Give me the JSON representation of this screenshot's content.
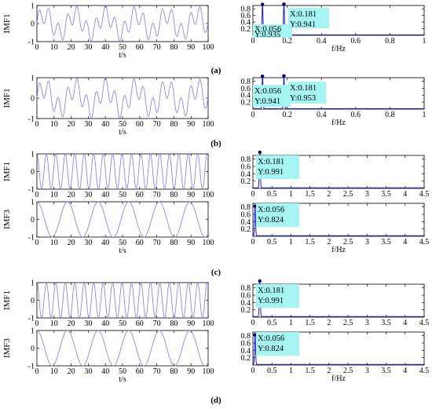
{
  "figure": {
    "panel_labels": [
      "(a)",
      "(b)",
      "(c)",
      "(d)"
    ]
  },
  "colors": {
    "signal": "#7b7bf2",
    "spectrum": "#1c1cc8",
    "marker": "#000080",
    "datatip": "#a5f5f5"
  },
  "chart_data": [
    {
      "type": "line",
      "panel": "(a)",
      "kind": "time",
      "ylabel": "IMF1",
      "xlabel": "t/s",
      "xlim": [
        0,
        100
      ],
      "ylim": [
        -1,
        1
      ],
      "xticks": [
        "0",
        "10",
        "20",
        "30",
        "40",
        "50",
        "60",
        "70",
        "80",
        "90",
        "100"
      ],
      "yticks": [
        "1",
        "0",
        "-1"
      ],
      "signal": "0.5*sin(2π·0.181·t) + 0.5*sin(2π·0.056·t)"
    },
    {
      "type": "line",
      "panel": "(a)",
      "kind": "spectrum",
      "xlabel": "f/Hz",
      "xlim": [
        0,
        1
      ],
      "ylim": [
        0,
        0.9
      ],
      "xticks": [
        "0",
        "0.2",
        "0.4",
        "0.6",
        "0.8",
        "1"
      ],
      "yticks": [
        "0.8",
        "0.6",
        "0.4",
        "0.2"
      ],
      "peaks": [
        {
          "x": 0.056,
          "y": 0.935
        },
        {
          "x": 0.181,
          "y": 0.941
        }
      ],
      "datatips": [
        {
          "x_text": "X:0.056",
          "y_text": "Y:0.935"
        },
        {
          "x_text": "X:0.181",
          "y_text": "Y:0.941"
        }
      ]
    },
    {
      "type": "line",
      "panel": "(b)",
      "kind": "time",
      "ylabel": "IMF1",
      "xlabel": "t/s",
      "xlim": [
        0,
        100
      ],
      "ylim": [
        -1,
        1
      ],
      "xticks": [
        "0",
        "10",
        "20",
        "30",
        "40",
        "50",
        "60",
        "70",
        "80",
        "90",
        "100"
      ],
      "yticks": [
        "1",
        "0",
        "-1"
      ],
      "signal": "0.5*sin(2π·0.181·t) + 0.5*sin(2π·0.056·t)"
    },
    {
      "type": "line",
      "panel": "(b)",
      "kind": "spectrum",
      "xlabel": "f/Hz",
      "xlim": [
        0,
        1
      ],
      "ylim": [
        0,
        0.9
      ],
      "xticks": [
        "0",
        "0.2",
        "0.4",
        "0.6",
        "0.8",
        "1"
      ],
      "yticks": [
        "0.8",
        "0.6",
        "0.4",
        "0.2"
      ],
      "peaks": [
        {
          "x": 0.056,
          "y": 0.941
        },
        {
          "x": 0.181,
          "y": 0.953
        }
      ],
      "datatips": [
        {
          "x_text": "X:0.056",
          "y_text": "Y:0.941"
        },
        {
          "x_text": "X:0.181",
          "y_text": "Y:0.953"
        }
      ]
    },
    {
      "type": "line",
      "panel": "(c)",
      "kind": "time",
      "ylabel": "IMF1",
      "xlabel": "",
      "xlim": [
        0,
        100
      ],
      "ylim": [
        -1,
        1
      ],
      "xticks": [
        "0",
        "10",
        "20",
        "30",
        "40",
        "50",
        "60",
        "70",
        "80",
        "90",
        "100"
      ],
      "yticks": [
        "1",
        "0",
        "-1"
      ],
      "signal": "cos(2π·0.181·t)"
    },
    {
      "type": "line",
      "panel": "(c)",
      "kind": "spectrum",
      "xlabel": "",
      "xlim": [
        0,
        4.5
      ],
      "ylim": [
        0,
        0.9
      ],
      "xticks": [
        "0",
        "0.5",
        "1",
        "1.5",
        "2",
        "2.5",
        "3",
        "3.5",
        "4",
        "4.5"
      ],
      "yticks": [
        "0.8",
        "0.6",
        "0.4",
        "0.2"
      ],
      "peaks": [
        {
          "x": 0.181,
          "y": 0.991
        }
      ],
      "datatips": [
        {
          "x_text": "X:0.181",
          "y_text": "Y:0.991"
        }
      ]
    },
    {
      "type": "line",
      "panel": "(c)",
      "kind": "time",
      "ylabel": "IMF3",
      "xlabel": "t/s",
      "xlim": [
        0,
        100
      ],
      "ylim": [
        -1,
        1
      ],
      "xticks": [
        "0",
        "10",
        "20",
        "30",
        "40",
        "50",
        "60",
        "70",
        "80",
        "90",
        "100"
      ],
      "yticks": [
        "1",
        "0",
        "-1"
      ],
      "signal": "cos(2π·0.056·t)"
    },
    {
      "type": "line",
      "panel": "(c)",
      "kind": "spectrum",
      "xlabel": "f/Hz",
      "xlim": [
        0,
        4.5
      ],
      "ylim": [
        0,
        0.9
      ],
      "xticks": [
        "0",
        "0.5",
        "1",
        "1.5",
        "2",
        "2.5",
        "3",
        "3.5",
        "4",
        "4.5"
      ],
      "yticks": [
        "0.8",
        "0.6",
        "0.4",
        "0.2"
      ],
      "peaks": [
        {
          "x": 0.056,
          "y": 0.824
        }
      ],
      "datatips": [
        {
          "x_text": "X:0.056",
          "y_text": "Y:0.824"
        }
      ]
    },
    {
      "type": "line",
      "panel": "(d)",
      "kind": "time",
      "ylabel": "IMF1",
      "xlabel": "",
      "xlim": [
        0,
        100
      ],
      "ylim": [
        -1,
        1
      ],
      "xticks": [
        "0",
        "10",
        "20",
        "30",
        "40",
        "50",
        "60",
        "70",
        "80",
        "90",
        "100"
      ],
      "yticks": [
        "1",
        "0",
        "-1"
      ],
      "signal": "cos(2π·0.181·t)"
    },
    {
      "type": "line",
      "panel": "(d)",
      "kind": "spectrum",
      "xlabel": "",
      "xlim": [
        0,
        4.5
      ],
      "ylim": [
        0,
        0.9
      ],
      "xticks": [
        "0",
        "0.5",
        "1",
        "1.5",
        "2",
        "2.5",
        "3",
        "3.5",
        "4",
        "4.5"
      ],
      "yticks": [
        "0.8",
        "0.6",
        "0.4",
        "0.2"
      ],
      "peaks": [
        {
          "x": 0.181,
          "y": 0.991
        }
      ],
      "datatips": [
        {
          "x_text": "X:0.181",
          "y_text": "Y:0.991"
        }
      ]
    },
    {
      "type": "line",
      "panel": "(d)",
      "kind": "time",
      "ylabel": "IMF3",
      "xlabel": "t/s",
      "xlim": [
        0,
        100
      ],
      "ylim": [
        -1,
        1
      ],
      "xticks": [
        "0",
        "10",
        "20",
        "30",
        "40",
        "50",
        "60",
        "70",
        "80",
        "90",
        "100"
      ],
      "yticks": [
        "1",
        "0",
        "-1"
      ],
      "signal": "cos(2π·0.056·t)"
    },
    {
      "type": "line",
      "panel": "(d)",
      "kind": "spectrum",
      "xlabel": "f/Hz",
      "xlim": [
        0,
        4.5
      ],
      "ylim": [
        0,
        0.9
      ],
      "xticks": [
        "0",
        "0.5",
        "1",
        "1.5",
        "2",
        "2.5",
        "3",
        "3.5",
        "4",
        "4.5"
      ],
      "yticks": [
        "0.8",
        "0.6",
        "0.4",
        "0.2"
      ],
      "peaks": [
        {
          "x": 0.056,
          "y": 0.824
        }
      ],
      "datatips": [
        {
          "x_text": "X:0.056",
          "y_text": "Y:0.824"
        }
      ]
    }
  ]
}
